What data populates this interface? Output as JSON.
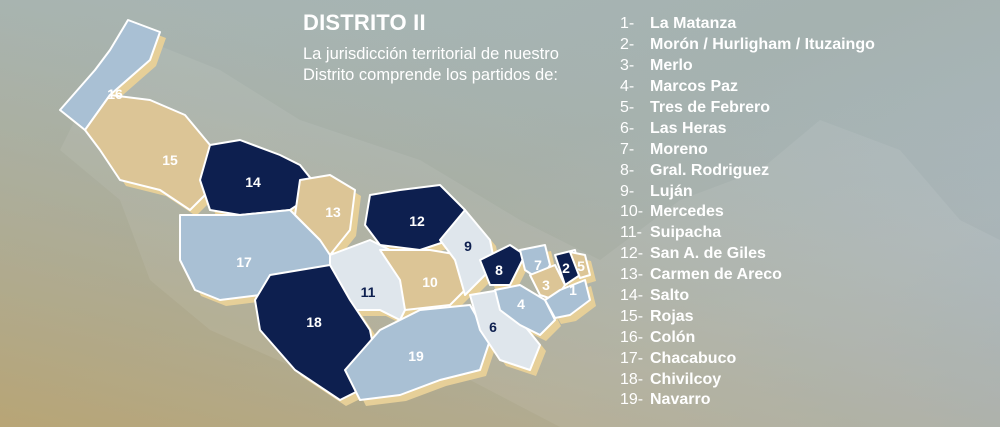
{
  "header": {
    "title": "DISTRITO II",
    "subtitle_line1": "La jurisdicción territorial de nuestro",
    "subtitle_line2": "Distrito comprende los partidos de:"
  },
  "colors": {
    "navy": "#0d1f4f",
    "tan": "#dcc596",
    "light_blue": "#a9c0d4",
    "pale": "#dfe6ec",
    "outline": "#ffffff",
    "background_top": "#a6b8bd",
    "background_bottom": "#b4a070"
  },
  "partidos": [
    {
      "num": "1-",
      "name": "La Matanza"
    },
    {
      "num": "2-",
      "name": "Morón / Hurligham / Ituzaingo"
    },
    {
      "num": "3-",
      "name": "Merlo"
    },
    {
      "num": "4-",
      "name": "Marcos Paz"
    },
    {
      "num": "5-",
      "name": "Tres de Febrero"
    },
    {
      "num": "6-",
      "name": "Las Heras"
    },
    {
      "num": "7-",
      "name": "Moreno"
    },
    {
      "num": "8-",
      "name": "Gral. Rodriguez"
    },
    {
      "num": "9-",
      "name": "Luján"
    },
    {
      "num": "10-",
      "name": "Mercedes"
    },
    {
      "num": "11-",
      "name": "Suipacha"
    },
    {
      "num": "12-",
      "name": "San A. de Giles"
    },
    {
      "num": "13-",
      "name": "Carmen de Areco"
    },
    {
      "num": "14-",
      "name": "Salto"
    },
    {
      "num": "15-",
      "name": "Rojas"
    },
    {
      "num": "16-",
      "name": "Colón"
    },
    {
      "num": "17-",
      "name": "Chacabuco"
    },
    {
      "num": "18-",
      "name": "Chivilcoy"
    },
    {
      "num": "19-",
      "name": "Navarro"
    }
  ],
  "map_labels": {
    "r1": "1",
    "r2": "2",
    "r3": "3",
    "r4": "4",
    "r5": "5",
    "r6": "6",
    "r7": "7",
    "r8": "8",
    "r9": "9",
    "r10": "10",
    "r11": "11",
    "r12": "12",
    "r13": "13",
    "r14": "14",
    "r15": "15",
    "r16": "16",
    "r17": "17",
    "r18": "18",
    "r19": "19"
  }
}
